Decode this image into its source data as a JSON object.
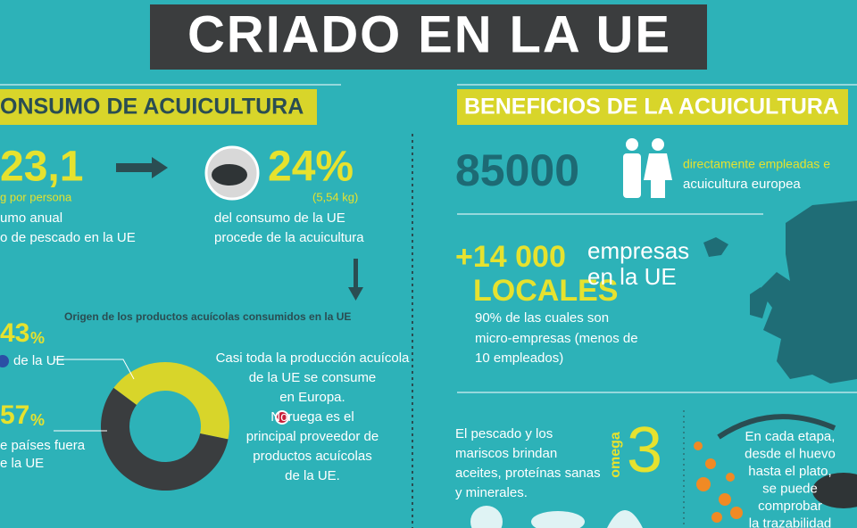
{
  "header": {
    "title": "CRIADO EN LA UE"
  },
  "consumo": {
    "title": "ONSUMO DE ACUICULTURA",
    "per_capita": "23,1",
    "per_capita_unit": "g por persona",
    "per_capita_text": [
      "umo anual",
      "o de pescado en la UE"
    ],
    "share": "24%",
    "share_kg": "(5,54 kg)",
    "share_text": [
      "del consumo de la UE",
      "procede de la acuicultura"
    ],
    "origin": {
      "title": "Origen de los productos acuícolas consumidos en la UE",
      "items": [
        {
          "value": 43,
          "unit": "%",
          "label": [
            "de la UE"
          ],
          "color": "#d8d52a"
        },
        {
          "value": 57,
          "unit": "%",
          "label": [
            "e países fuera",
            "e la UE"
          ],
          "color": "#3a3d3f"
        }
      ],
      "note": [
        "Casi toda la producción acuícola",
        "de la UE se consume",
        "en Europa.",
        "Noruega es el",
        "principal proveedor de",
        "productos acuícolas",
        "de la UE."
      ]
    }
  },
  "beneficios": {
    "title": "BENEFICIOS DE LA ACUICULTURA",
    "jobs": "85000",
    "jobs_text": [
      "directamente empleadas e",
      "acuicultura europea"
    ],
    "companies": "+14 000",
    "companies_kind": "LOCALES",
    "companies_text": [
      "empresas",
      "en la UE"
    ],
    "micro_text": [
      "90% de las cuales son",
      "micro-empresas (menos de",
      "10 empleados)"
    ],
    "nutrition": [
      "El pescado y los",
      "mariscos brindan",
      "aceites, proteínas sanas",
      "y minerales."
    ],
    "omega": "omega",
    "omega_num": "3",
    "trace": [
      "En cada etapa,",
      "desde el huevo",
      "hasta el plato,",
      "se puede",
      "comprobar",
      "la trazabilidad"
    ]
  }
}
